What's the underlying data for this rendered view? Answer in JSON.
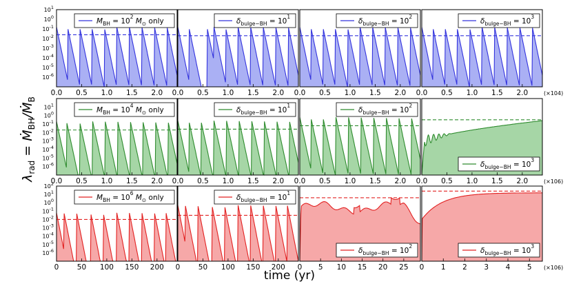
{
  "figure": {
    "ylabel": "λrad = ṀBH/ṀB",
    "xlabel": "time (yr)",
    "colors": {
      "blue": "#3333dd",
      "green": "#2e8b2e",
      "red": "#e22020",
      "blue_fill": "#aab0f4",
      "green_fill": "#a6d6a6",
      "red_fill": "#f6a8a8"
    }
  },
  "chart_data": [
    {
      "type": "area",
      "row": 0,
      "col": 0,
      "color": "blue",
      "legend": {
        "main": "M",
        "sub": "BH",
        "rest": " = 10",
        "sup": "2",
        "unit": " M",
        "unitsub": "⊙",
        "tail": " only"
      },
      "x_range": [
        0,
        2.4
      ],
      "ylim_exp": [
        -7,
        1
      ],
      "dashed_level_exp": -1.6,
      "peaks_x": [
        0.0,
        0.22,
        0.46,
        0.7,
        0.95,
        1.2,
        1.45,
        1.7,
        1.95,
        2.2
      ],
      "peak_exp": -0.8,
      "decay": 0.22,
      "floor_exp": -7
    },
    {
      "type": "area",
      "row": 0,
      "col": 1,
      "color": "blue",
      "legend": {
        "main": "δ",
        "sub": "bulge−BH",
        "rest": " = 10",
        "sup": "1"
      },
      "x_range": [
        0,
        2.4
      ],
      "ylim_exp": [
        -7,
        1
      ],
      "dashed_level_exp": -1.7,
      "peaks_x": [
        0.0,
        0.22,
        0.58,
        0.72,
        0.95,
        1.2,
        1.45,
        1.7,
        1.95,
        2.2
      ],
      "peak_exp": -0.8,
      "decay": 0.22,
      "floor_exp": -7
    },
    {
      "type": "area",
      "row": 0,
      "col": 2,
      "color": "blue",
      "legend": {
        "main": "δ",
        "sub": "bulge−BH",
        "rest": " = 10",
        "sup": "2"
      },
      "x_range": [
        0,
        2.4
      ],
      "ylim_exp": [
        -7,
        1
      ],
      "dashed_level_exp": -1.7,
      "peaks_x": [
        0.0,
        0.22,
        0.46,
        0.7,
        0.95,
        1.2,
        1.45,
        1.7,
        1.95,
        2.2
      ],
      "peak_exp": -0.8,
      "decay": 0.22,
      "floor_exp": -7
    },
    {
      "type": "area",
      "row": 0,
      "col": 3,
      "color": "blue",
      "legend": {
        "main": "δ",
        "sub": "bulge−BH",
        "rest": " = 10",
        "sup": "3"
      },
      "x_range": [
        0,
        2.4
      ],
      "ylim_exp": [
        -7,
        1
      ],
      "dashed_level_exp": -1.7,
      "peaks_x": [
        0.0,
        0.22,
        0.46,
        0.7,
        0.95,
        1.2,
        1.45,
        1.7,
        1.95,
        2.2
      ],
      "peak_exp": -0.8,
      "decay": 0.22,
      "floor_exp": -7
    },
    {
      "type": "area",
      "row": 1,
      "col": 0,
      "color": "green",
      "legend": {
        "main": "M",
        "sub": "BH",
        "rest": " = 10",
        "sup": "4",
        "unit": " M",
        "unitsub": "⊙",
        "tail": " only"
      },
      "x_range": [
        0,
        2.4
      ],
      "ylim_exp": [
        -7,
        2
      ],
      "dashed_level_exp": -1.7,
      "peaks_x": [
        0.0,
        0.2,
        0.46,
        0.72,
        0.97,
        1.22,
        1.47,
        1.72,
        1.97,
        2.22
      ],
      "peak_exp": -0.7,
      "decay": 0.2,
      "floor_exp": -7
    },
    {
      "type": "area",
      "row": 1,
      "col": 1,
      "color": "green",
      "legend": {
        "main": "δ",
        "sub": "bulge−BH",
        "rest": " = 10",
        "sup": "1"
      },
      "x_range": [
        0,
        2.4
      ],
      "ylim_exp": [
        -7,
        2
      ],
      "dashed_level_exp": -1.6,
      "peaks_x": [
        0.0,
        0.22,
        0.46,
        0.72,
        0.97,
        1.22,
        1.47,
        1.72,
        1.97,
        2.22
      ],
      "peak_exp": -0.6,
      "decay": 0.2,
      "floor_exp": -7
    },
    {
      "type": "area",
      "row": 1,
      "col": 2,
      "color": "green",
      "legend": {
        "main": "δ",
        "sub": "bulge−BH",
        "rest": " = 10",
        "sup": "2"
      },
      "x_range": [
        0,
        2.4
      ],
      "ylim_exp": [
        -7,
        2
      ],
      "dashed_level_exp": -1.2,
      "peaks_x": [
        0.0,
        0.22,
        0.46,
        0.72,
        0.97,
        1.22,
        1.47,
        1.72,
        1.97,
        2.22
      ],
      "peak_exp": -0.2,
      "decay": 0.2,
      "floor_exp": -7
    },
    {
      "type": "area",
      "row": 1,
      "col": 3,
      "color": "green",
      "legend": {
        "main": "δ",
        "sub": "bulge−BH",
        "rest": " = 10",
        "sup": "3"
      },
      "x_range": [
        0,
        2.4
      ],
      "ylim_exp": [
        -7,
        2
      ],
      "dashed_level_exp": -0.5,
      "curve": "rising",
      "start_exp": -3.3,
      "end_exp": -0.6,
      "osc_until": 0.6,
      "floor_exp": -7
    },
    {
      "type": "area",
      "row": 2,
      "col": 0,
      "color": "red",
      "legend": {
        "main": "M",
        "sub": "BH",
        "rest": " = 10",
        "sup": "6",
        "unit": " M",
        "unitsub": "⊙",
        "tail": " only"
      },
      "x_range": [
        0,
        240
      ],
      "ylim_exp": [
        -7,
        2
      ],
      "dashed_level_exp": -2,
      "peaks_x": [
        0,
        15,
        40,
        68,
        93,
        120,
        145,
        170,
        195,
        218
      ],
      "peak_exp": -1.2,
      "decay": 18,
      "floor_exp": -7
    },
    {
      "type": "area",
      "row": 2,
      "col": 1,
      "color": "red",
      "legend": {
        "main": "δ",
        "sub": "bulge−BH",
        "rest": " = 10",
        "sup": "1"
      },
      "x_range": [
        0,
        240
      ],
      "ylim_exp": [
        -7,
        2
      ],
      "dashed_level_exp": -1.5,
      "peaks_x": [
        0,
        15,
        40,
        68,
        93,
        120,
        145,
        170,
        195,
        218
      ],
      "peak_exp": -0.3,
      "decay": 18,
      "floor_exp": -7
    },
    {
      "type": "area",
      "row": 2,
      "col": 2,
      "color": "red",
      "legend": {
        "main": "δ",
        "sub": "bulge−BH",
        "rest": " = 10",
        "sup": "2"
      },
      "x_range": [
        0,
        29
      ],
      "ylim_exp": [
        -7,
        2
      ],
      "dashed_level_exp": 0.6,
      "curve": "wavy",
      "floor_exp": -7
    },
    {
      "type": "area",
      "row": 2,
      "col": 3,
      "color": "red",
      "legend": {
        "main": "δ",
        "sub": "bulge−BH",
        "rest": " = 10",
        "sup": "3"
      },
      "x_range": [
        0,
        5.6
      ],
      "ylim_exp": [
        -7,
        2
      ],
      "dashed_level_exp": 1.4,
      "curve": "saturating",
      "start_exp": -2,
      "end_exp": 1.2,
      "floor_exp": -7
    }
  ],
  "axes": {
    "yticks": {
      "row0": [
        "10^1",
        "10^0",
        "10^-1",
        "10^-2",
        "10^-3",
        "10^-4",
        "10^-5",
        "10^-6"
      ],
      "row1": [
        "10^1",
        "10^0",
        "10^-1",
        "10^-2",
        "10^-3",
        "10^-4",
        "10^-5",
        "10^-6"
      ],
      "row2": [
        "10^2",
        "10^1",
        "10^0",
        "10^-1",
        "10^-2",
        "10^-3",
        "10^-4",
        "10^-5",
        "10^-6"
      ]
    },
    "xticks": {
      "row0": [
        "0.0",
        "0.5",
        "1.0",
        "1.5",
        "2.0"
      ],
      "row0_last": [
        "0.0",
        "0.5",
        "1.0",
        "1.5",
        "2.0"
      ],
      "row0_mult": "(×10^4)",
      "row1": [
        "0.0",
        "0.5",
        "1.0",
        "1.5",
        "2.0"
      ],
      "row1_mult": "(×10^6)",
      "row2_a": [
        "0",
        "50",
        "100",
        "150",
        "200"
      ],
      "row2_b": [
        "0",
        "5",
        "10",
        "15",
        "20",
        "25"
      ],
      "row2_c": [
        "0",
        "1",
        "2",
        "3",
        "4",
        "5"
      ],
      "row2_mult": "(×10^6)"
    }
  }
}
